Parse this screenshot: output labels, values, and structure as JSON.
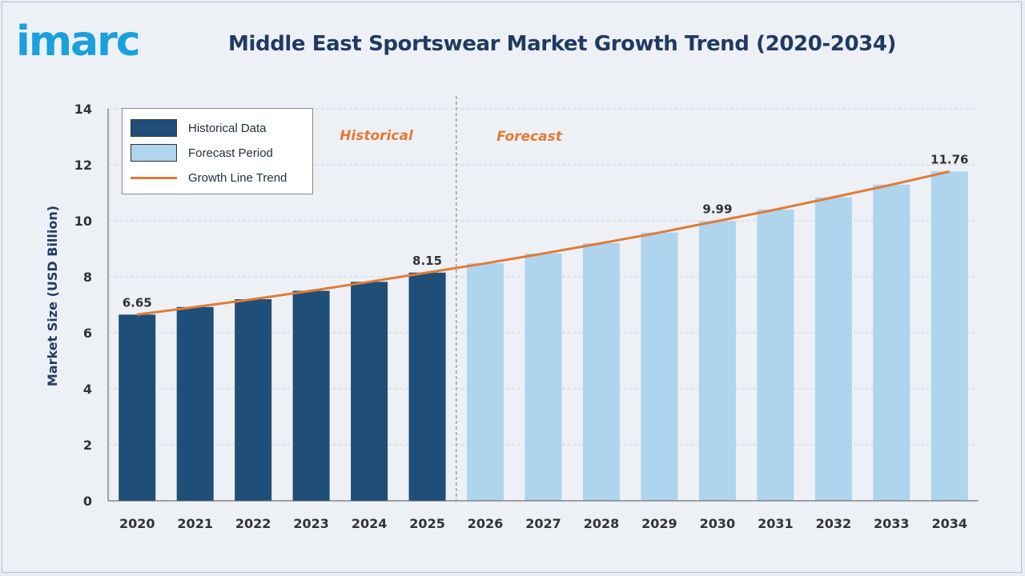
{
  "header": {
    "logo_text": "imarc",
    "title": "Middle East Sportswear Market Growth Trend (2020-2034)"
  },
  "colors": {
    "historical": "#1f4e79",
    "forecast": "#aed4ee",
    "trend": "#e07b35",
    "title": "#1f3b63",
    "logo": "#1aa0dc"
  },
  "legend": {
    "historical": "Historical Data",
    "forecast": "Forecast Period",
    "trend": "Growth Line Trend"
  },
  "annotations": {
    "historical": "Historical",
    "forecast": "Forecast"
  },
  "chart_data": {
    "type": "bar",
    "title": "Middle East Sportswear Market Growth Trend (2020-2034)",
    "xlabel": "",
    "ylabel": "Market Size (USD Billion)",
    "ylim": [
      0,
      14
    ],
    "yticks": [
      0,
      2,
      4,
      6,
      8,
      10,
      12,
      14
    ],
    "grid": true,
    "legend_position": "top-left",
    "categories": [
      "2020",
      "2021",
      "2022",
      "2023",
      "2024",
      "2025",
      "2026",
      "2027",
      "2028",
      "2029",
      "2030",
      "2031",
      "2032",
      "2033",
      "2034"
    ],
    "series": [
      {
        "name": "Historical Data",
        "values": [
          6.65,
          6.92,
          7.2,
          7.5,
          7.82,
          8.15,
          null,
          null,
          null,
          null,
          null,
          null,
          null,
          null,
          null
        ]
      },
      {
        "name": "Forecast Period",
        "values": [
          null,
          null,
          null,
          null,
          null,
          null,
          8.48,
          8.83,
          9.2,
          9.58,
          9.99,
          10.4,
          10.84,
          11.29,
          11.76
        ]
      },
      {
        "name": "Growth Line Trend",
        "type": "line",
        "values": [
          6.65,
          6.92,
          7.2,
          7.5,
          7.82,
          8.15,
          8.48,
          8.83,
          9.2,
          9.58,
          9.99,
          10.4,
          10.84,
          11.29,
          11.76
        ]
      }
    ],
    "data_labels": [
      {
        "category": "2020",
        "text": "6.65"
      },
      {
        "category": "2025",
        "text": "8.15"
      },
      {
        "category": "2030",
        "text": "9.99"
      },
      {
        "category": "2034",
        "text": "11.76"
      }
    ]
  }
}
